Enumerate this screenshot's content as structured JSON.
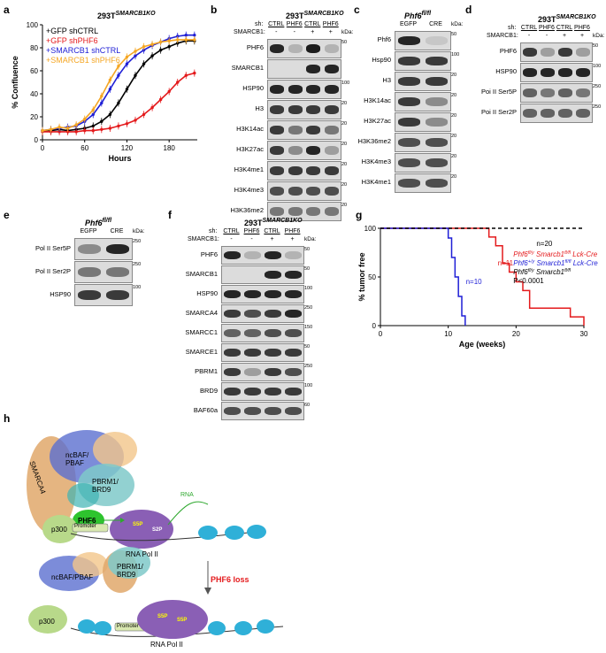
{
  "panels": {
    "a": {
      "letter": "a",
      "title": "293T",
      "title_sup": "SMARCB1KO",
      "chart_data": {
        "type": "line",
        "xlabel": "Hours",
        "ylabel": "% Confluence",
        "xlim": [
          0,
          220
        ],
        "ylim": [
          0,
          100
        ],
        "xticks": [
          "0",
          "60",
          "120",
          "180"
        ],
        "yticks": [
          "0",
          "20",
          "40",
          "60",
          "80",
          "100"
        ],
        "x": [
          0,
          12,
          24,
          36,
          48,
          60,
          72,
          84,
          96,
          108,
          120,
          132,
          144,
          156,
          168,
          180,
          192,
          204,
          216
        ],
        "series": [
          {
            "name": "+GFP shCTRL",
            "color": "#000000",
            "values": [
              8,
              8,
              9,
              8,
              9,
              10,
              12,
              16,
              22,
              32,
              44,
              56,
              66,
              73,
              78,
              81,
              84,
              86,
              86
            ]
          },
          {
            "name": "+GFP shPHF6",
            "color": "#e41a1c",
            "values": [
              7,
              7,
              7,
              7,
              7,
              8,
              8,
              9,
              10,
              12,
              14,
              17,
              22,
              28,
              35,
              42,
              50,
              56,
              58
            ]
          },
          {
            "name": "+SMARCB1 shCTRL",
            "color": "#1f1fd6",
            "values": [
              8,
              9,
              10,
              11,
              12,
              16,
              22,
              32,
              44,
              56,
              66,
              73,
              78,
              82,
              85,
              88,
              90,
              91,
              91
            ]
          },
          {
            "name": "+SMARCB1 shPHF6",
            "color": "#f5a623",
            "values": [
              8,
              9,
              11,
              10,
              13,
              18,
              26,
              38,
              52,
              64,
              72,
              77,
              81,
              83,
              85,
              86,
              87,
              87,
              87
            ]
          }
        ]
      }
    },
    "b": {
      "letter": "b",
      "title": "293T",
      "title_sup": "SMARCB1KO",
      "sh_label": "sh:",
      "sh_groups": [
        "CTRL",
        "PHF6",
        "CTRL",
        "PHF6"
      ],
      "smarcb1_label": "SMARCB1:",
      "smarcb1_values": [
        "-",
        "-",
        "+",
        "+"
      ],
      "kda_label": "kDa:",
      "rows": [
        {
          "label": "PHF6",
          "mw": "50",
          "bands": [
            0.9,
            0.2,
            0.95,
            0.2
          ]
        },
        {
          "label": "SMARCB1",
          "mw": "",
          "bands": [
            0,
            0,
            0.9,
            0.9
          ]
        },
        {
          "label": "HSP90",
          "mw": "100",
          "bands": [
            0.9,
            0.9,
            0.9,
            0.9
          ]
        },
        {
          "label": "H3",
          "mw": "20",
          "bands": [
            0.8,
            0.8,
            0.8,
            0.8
          ]
        },
        {
          "label": "H3K14ac",
          "mw": "20",
          "bands": [
            0.8,
            0.5,
            0.8,
            0.5
          ]
        },
        {
          "label": "H3K27ac",
          "mw": "20",
          "bands": [
            0.8,
            0.4,
            0.9,
            0.3
          ]
        },
        {
          "label": "H3K4me1",
          "mw": "20",
          "bands": [
            0.8,
            0.8,
            0.8,
            0.8
          ]
        },
        {
          "label": "H3K4me3",
          "mw": "20",
          "bands": [
            0.7,
            0.7,
            0.7,
            0.7
          ]
        },
        {
          "label": "H3K36me2",
          "mw": "20",
          "bands": [
            0.5,
            0.5,
            0.5,
            0.5
          ]
        }
      ]
    },
    "c": {
      "letter": "c",
      "title": "Phf6",
      "title_sup": "fl/fl",
      "lanes": [
        "EGFP",
        "CRE"
      ],
      "kda_label": "kDa:",
      "rows": [
        {
          "label": "Phf6",
          "mw": "50",
          "bands": [
            0.9,
            0.1
          ]
        },
        {
          "label": "Hsp90",
          "mw": "100",
          "bands": [
            0.8,
            0.8
          ]
        },
        {
          "label": "H3",
          "mw": "20",
          "bands": [
            0.8,
            0.8
          ]
        },
        {
          "label": "H3K14ac",
          "mw": "20",
          "bands": [
            0.8,
            0.4
          ]
        },
        {
          "label": "H3K27ac",
          "mw": "20",
          "bands": [
            0.8,
            0.4
          ]
        },
        {
          "label": "H3K36me2",
          "mw": "20",
          "bands": [
            0.7,
            0.7
          ]
        },
        {
          "label": "H3K4me3",
          "mw": "20",
          "bands": [
            0.7,
            0.7
          ]
        },
        {
          "label": "H3K4me1",
          "mw": "20",
          "bands": [
            0.7,
            0.7
          ]
        }
      ]
    },
    "d": {
      "letter": "d",
      "title": "293T",
      "title_sup": "SMARCB1KO",
      "sh_label": "sh:",
      "sh_groups": [
        "CTRL",
        "PHF6",
        "CTRL",
        "PHF6"
      ],
      "smarcb1_label": "SMARCB1:",
      "smarcb1_values": [
        "-",
        "-",
        "+",
        "+"
      ],
      "kda_label": "kDa:",
      "rows": [
        {
          "label": "PHF6",
          "mw": "50",
          "bands": [
            0.8,
            0.3,
            0.8,
            0.3
          ]
        },
        {
          "label": "HSP90",
          "mw": "100",
          "bands": [
            0.9,
            0.9,
            0.9,
            0.9
          ]
        },
        {
          "label": "Poi II Ser5P",
          "mw": "250",
          "bands": [
            0.6,
            0.5,
            0.6,
            0.5
          ]
        },
        {
          "label": "Poi II Ser2P",
          "mw": "250",
          "bands": [
            0.6,
            0.6,
            0.6,
            0.6
          ]
        }
      ]
    },
    "e": {
      "letter": "e",
      "title": "Phf6",
      "title_sup": "fl/fl",
      "lanes": [
        "EGFP",
        "CRE"
      ],
      "kda_label": "kDa:",
      "rows": [
        {
          "label": "Pol II Ser5P",
          "mw": "250",
          "bands": [
            0.4,
            0.9
          ]
        },
        {
          "label": "Pol II Ser2P",
          "mw": "250",
          "bands": [
            0.5,
            0.5
          ]
        },
        {
          "label": "HSP90",
          "mw": "100",
          "bands": [
            0.8,
            0.8
          ]
        }
      ]
    },
    "f": {
      "letter": "f",
      "title": "293T",
      "title_sup": "SMARCB1KO",
      "sh_label": "sh:",
      "sh_groups": [
        "CTRL",
        "PHF6",
        "CTRL",
        "PHF6"
      ],
      "smarcb1_label": "SMARCB1:",
      "smarcb1_values": [
        "-",
        "-",
        "+",
        "+"
      ],
      "kda_label": "kDa:",
      "rows": [
        {
          "label": "PHF6",
          "mw": "50",
          "bands": [
            0.9,
            0.2,
            0.9,
            0.2
          ]
        },
        {
          "label": "SMARCB1",
          "mw": "50",
          "bands": [
            0,
            0,
            0.9,
            0.9
          ]
        },
        {
          "label": "HSP90",
          "mw": "100",
          "bands": [
            0.9,
            0.9,
            0.9,
            0.9
          ]
        },
        {
          "label": "SMARCA4",
          "mw": "250",
          "bands": [
            0.8,
            0.7,
            0.8,
            0.9
          ]
        },
        {
          "label": "SMARCC1",
          "mw": "150",
          "bands": [
            0.6,
            0.6,
            0.7,
            0.7
          ]
        },
        {
          "label": "SMARCE1",
          "mw": "50",
          "bands": [
            0.8,
            0.8,
            0.8,
            0.8
          ]
        },
        {
          "label": "PBRM1",
          "mw": "250",
          "bands": [
            0.8,
            0.3,
            0.8,
            0.7
          ]
        },
        {
          "label": "BRD9",
          "mw": "100",
          "bands": [
            0.8,
            0.8,
            0.8,
            0.8
          ]
        },
        {
          "label": "BAF60a",
          "mw": "60",
          "bands": [
            0.7,
            0.7,
            0.7,
            0.7
          ]
        }
      ]
    },
    "g": {
      "letter": "g",
      "chart_data": {
        "type": "line",
        "xlabel": "Age (weeks)",
        "ylabel": "% tumor free",
        "xlim": [
          0,
          30
        ],
        "ylim": [
          0,
          100
        ],
        "xticks": [
          "0",
          "10",
          "20",
          "30"
        ],
        "yticks": [
          "0",
          "50",
          "100"
        ],
        "series": [
          {
            "name": "Phf6fl/y Smarcb1fl/fl Lck-Cre",
            "color": "#e41a1c",
            "n": "n=11",
            "steps": [
              [
                0,
                100
              ],
              [
                16,
                100
              ],
              [
                16,
                91
              ],
              [
                17,
                91
              ],
              [
                17,
                82
              ],
              [
                18,
                82
              ],
              [
                18,
                64
              ],
              [
                19,
                64
              ],
              [
                19,
                55
              ],
              [
                20,
                55
              ],
              [
                20,
                45
              ],
              [
                21,
                45
              ],
              [
                21,
                36
              ],
              [
                22,
                36
              ],
              [
                22,
                18
              ],
              [
                28,
                18
              ],
              [
                28,
                9
              ],
              [
                30,
                9
              ],
              [
                30,
                0
              ]
            ]
          },
          {
            "name": "Phf6+/y Smarcb1fl/fl Lck-Cre",
            "color": "#1f1fd6",
            "n": "n=10",
            "steps": [
              [
                0,
                100
              ],
              [
                10,
                100
              ],
              [
                10,
                90
              ],
              [
                10.5,
                90
              ],
              [
                10.5,
                70
              ],
              [
                11,
                70
              ],
              [
                11,
                50
              ],
              [
                11.5,
                50
              ],
              [
                11.5,
                30
              ],
              [
                12,
                30
              ],
              [
                12,
                10
              ],
              [
                12.5,
                10
              ],
              [
                12.5,
                0
              ]
            ]
          },
          {
            "name": "Phf6fl/y Smarcb1fl/fl",
            "color": "#000000",
            "n": "n=20",
            "dashed": true,
            "steps": [
              [
                0,
                100
              ],
              [
                30,
                100
              ]
            ]
          }
        ],
        "legend": [
          {
            "text": "Phf6",
            "sup": "fl/y",
            "text2": " Smarcb1",
            "sup2": "fl/fl",
            "text3": " Lck-Cre",
            "color": "#e41a1c"
          },
          {
            "text": "Phf6",
            "sup": "+/y",
            "text2": " Smarcb1",
            "sup2": "fl/fl",
            "text3": " Lck-Cre",
            "color": "#1f1fd6"
          },
          {
            "text": "Phf6",
            "sup": "fl/y",
            "text2": " Smarcb1",
            "sup2": "fl/fl",
            "text3": "",
            "color": "#000000"
          }
        ],
        "pvalue": "P<0.0001",
        "n_black": "n=20",
        "n_red": "n=11",
        "n_blue": "n=10"
      }
    },
    "h": {
      "letter": "h",
      "labels": {
        "ncbaf_top": "ncBAF/\nPBAF",
        "smarca4": "SMARCA4",
        "pbrm1": "PBRM1/\nBRD9",
        "phf6": "PHF6",
        "p300": "p300",
        "promoter": "Promoter",
        "s5p": "S5P",
        "s2p": "S2P",
        "rna": "RNA",
        "polii": "RNA Pol II",
        "ncbaf_bottom": "ncBAF/PBAF",
        "pbrm1_bottom": "PBRM1/\nBRD9",
        "phf6_loss": "PHF6 loss",
        "p300_bottom": "p300",
        "promoter_bottom": "Promoter",
        "s5p_b1": "S5P",
        "s5p_b2": "S5P",
        "polii_bottom": "RNA Pol II"
      }
    }
  }
}
